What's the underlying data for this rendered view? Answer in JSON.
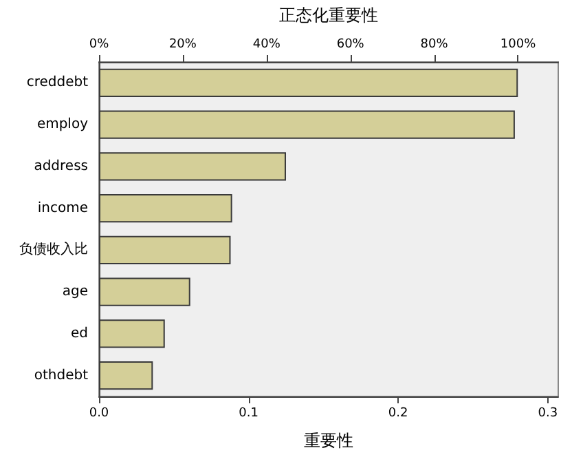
{
  "chart_data": {
    "type": "bar",
    "orientation": "horizontal",
    "x2label": "正态化重要性",
    "xlabel": "重要性",
    "categories": [
      "creddebt",
      "employ",
      "address",
      "income",
      "负债收入比",
      "age",
      "ed",
      "othdebt"
    ],
    "values": [
      0.28,
      0.278,
      0.125,
      0.089,
      0.088,
      0.061,
      0.044,
      0.036
    ],
    "color": "#d4cf98",
    "xlim": [
      0,
      0.307
    ],
    "xticks": [
      {
        "value": 0,
        "label": "0.0"
      },
      {
        "value": 0.1,
        "label": "0.1"
      },
      {
        "value": 0.2,
        "label": "0.2"
      },
      {
        "value": 0.3,
        "label": "0.3"
      }
    ],
    "x2lim": [
      0,
      109.6
    ],
    "x2ticks": [
      {
        "value": 0,
        "label": "0%"
      },
      {
        "value": 20,
        "label": "20%"
      },
      {
        "value": 40,
        "label": "40%"
      },
      {
        "value": 60,
        "label": "60%"
      },
      {
        "value": 80,
        "label": "80%"
      },
      {
        "value": 100,
        "label": "100%"
      }
    ],
    "grid": false
  }
}
